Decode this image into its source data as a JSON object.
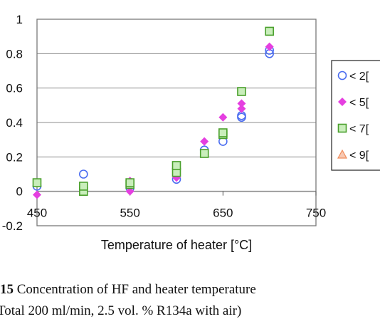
{
  "chart_data": {
    "type": "scatter",
    "xlabel": "Temperature of heater [°C]",
    "ylabel": "",
    "xlim": [
      450,
      750
    ],
    "ylim": [
      -0.2,
      1
    ],
    "x_ticks": [
      "450",
      "550",
      "650",
      "750"
    ],
    "y_ticks": [
      "1",
      "0.8",
      "0.6",
      "0.4",
      "0.2",
      "0",
      "-0.2"
    ],
    "grid": true,
    "legend_placement": "right",
    "series": [
      {
        "name": "< 2[",
        "marker": "circle",
        "color": "#4a6cf0",
        "points": [
          [
            450,
            0.03
          ],
          [
            500,
            0.1
          ],
          [
            550,
            0.02
          ],
          [
            600,
            0.07
          ],
          [
            630,
            0.24
          ],
          [
            650,
            0.29
          ],
          [
            670,
            0.43
          ],
          [
            670,
            0.44
          ],
          [
            700,
            0.8
          ],
          [
            700,
            0.82
          ]
        ]
      },
      {
        "name": "< 5[",
        "marker": "diamond",
        "color": "#e53fe0",
        "points": [
          [
            450,
            -0.02
          ],
          [
            500,
            0.0
          ],
          [
            550,
            0.0
          ],
          [
            550,
            0.06
          ],
          [
            600,
            0.08
          ],
          [
            630,
            0.29
          ],
          [
            650,
            0.43
          ],
          [
            670,
            0.48
          ],
          [
            670,
            0.51
          ],
          [
            700,
            0.84
          ]
        ]
      },
      {
        "name": "< 7[",
        "marker": "square",
        "color": "#4aa02c",
        "points": [
          [
            450,
            0.05
          ],
          [
            500,
            0.0
          ],
          [
            500,
            0.03
          ],
          [
            550,
            0.04
          ],
          [
            550,
            0.05
          ],
          [
            600,
            0.11
          ],
          [
            600,
            0.15
          ],
          [
            630,
            0.22
          ],
          [
            650,
            0.33
          ],
          [
            650,
            0.34
          ],
          [
            670,
            0.58
          ],
          [
            700,
            0.93
          ]
        ]
      },
      {
        "name": "< 9[",
        "marker": "triangle",
        "color": "#f08c5a",
        "points": []
      }
    ]
  },
  "caption": {
    "line1_bold": "15",
    "line1_rest": " Concentration of HF and heater temperature",
    "line2": "Total 200 ml/min, 2.5 vol. % R134a with air)"
  }
}
